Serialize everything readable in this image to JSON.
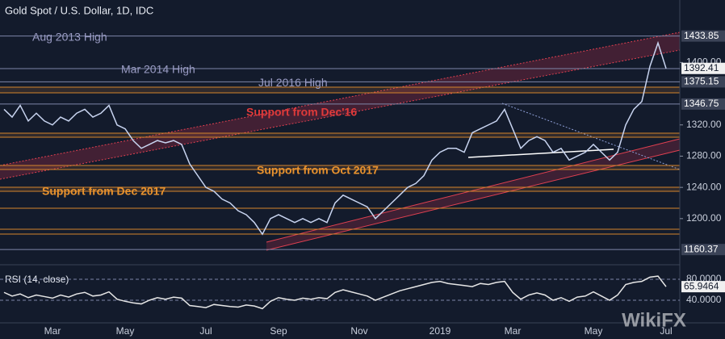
{
  "chart_data": [
    {
      "type": "line",
      "title": "Gold Spot / U.S. Dollar, 1D, IDC",
      "color": "#c8d4f0",
      "categories": [
        null,
        null,
        null,
        null,
        null,
        null,
        "Mar",
        null,
        null,
        null,
        null,
        null,
        null,
        null,
        null,
        "May",
        null,
        null,
        null,
        null,
        null,
        null,
        null,
        null,
        null,
        "Jul",
        null,
        null,
        null,
        null,
        null,
        null,
        null,
        null,
        "Sep",
        null,
        null,
        null,
        null,
        null,
        null,
        null,
        null,
        null,
        "Nov",
        null,
        null,
        null,
        null,
        null,
        null,
        null,
        null,
        null,
        "2019",
        null,
        null,
        null,
        null,
        null,
        null,
        null,
        null,
        "Mar",
        null,
        null,
        null,
        null,
        null,
        null,
        null,
        null,
        null,
        "May",
        null,
        null,
        null,
        null,
        null,
        null,
        null,
        null,
        "Jul"
      ],
      "values": [
        1340,
        1330,
        1345,
        1325,
        1335,
        1325,
        1320,
        1330,
        1325,
        1335,
        1340,
        1330,
        1335,
        1345,
        1320,
        1315,
        1300,
        1290,
        1295,
        1300,
        1297,
        1300,
        1295,
        1270,
        1255,
        1240,
        1235,
        1225,
        1220,
        1210,
        1205,
        1195,
        1180,
        1200,
        1205,
        1200,
        1195,
        1200,
        1195,
        1200,
        1195,
        1220,
        1230,
        1225,
        1220,
        1215,
        1200,
        1210,
        1220,
        1230,
        1240,
        1245,
        1255,
        1275,
        1285,
        1290,
        1290,
        1285,
        1310,
        1315,
        1320,
        1325,
        1340,
        1315,
        1290,
        1300,
        1305,
        1300,
        1285,
        1290,
        1275,
        1280,
        1285,
        1295,
        1285,
        1275,
        1285,
        1320,
        1340,
        1350,
        1395,
        1425,
        1392.41
      ],
      "ylim": [
        1144,
        1480
      ],
      "yticks": [
        {
          "value": 1400,
          "label": "1400.00"
        },
        {
          "value": 1320,
          "label": "1320.00"
        },
        {
          "value": 1280,
          "label": "1280.00"
        },
        {
          "value": 1240,
          "label": "1240.00"
        },
        {
          "value": 1200,
          "label": "1200.00"
        }
      ],
      "levels": [
        {
          "value": 1433.85,
          "text": "Aug 2013 High"
        },
        {
          "value": 1392.08,
          "text": "Mar 2014 High"
        },
        {
          "value": 1375.15,
          "text": "Jul 2016 High"
        },
        {
          "value": 1346.75
        },
        {
          "value": 1160.37
        }
      ],
      "annotations": [
        "Support from Dec'16",
        "Support from Oct 2017",
        "Support from Dec 2017"
      ],
      "watermark": "WikiFX"
    },
    {
      "type": "line",
      "title": "RSI (14, close)",
      "color": "#e6e6e6",
      "values": [
        55,
        48,
        52,
        45,
        50,
        47,
        44,
        50,
        46,
        52,
        55,
        48,
        50,
        56,
        42,
        38,
        35,
        33,
        40,
        45,
        42,
        46,
        44,
        30,
        28,
        26,
        32,
        30,
        28,
        27,
        31,
        29,
        24,
        38,
        45,
        42,
        40,
        44,
        42,
        45,
        43,
        55,
        60,
        56,
        52,
        48,
        40,
        46,
        52,
        58,
        62,
        66,
        70,
        74,
        76,
        72,
        70,
        68,
        66,
        72,
        70,
        74,
        76,
        55,
        42,
        50,
        54,
        50,
        40,
        45,
        38,
        46,
        48,
        56,
        48,
        40,
        50,
        70,
        74,
        76,
        84,
        86,
        65.9464
      ],
      "ylim": [
        0,
        100
      ],
      "yticks": [
        {
          "value": 80,
          "label": "80.0000"
        },
        {
          "value": 40,
          "label": "40.0000"
        }
      ]
    }
  ]
}
